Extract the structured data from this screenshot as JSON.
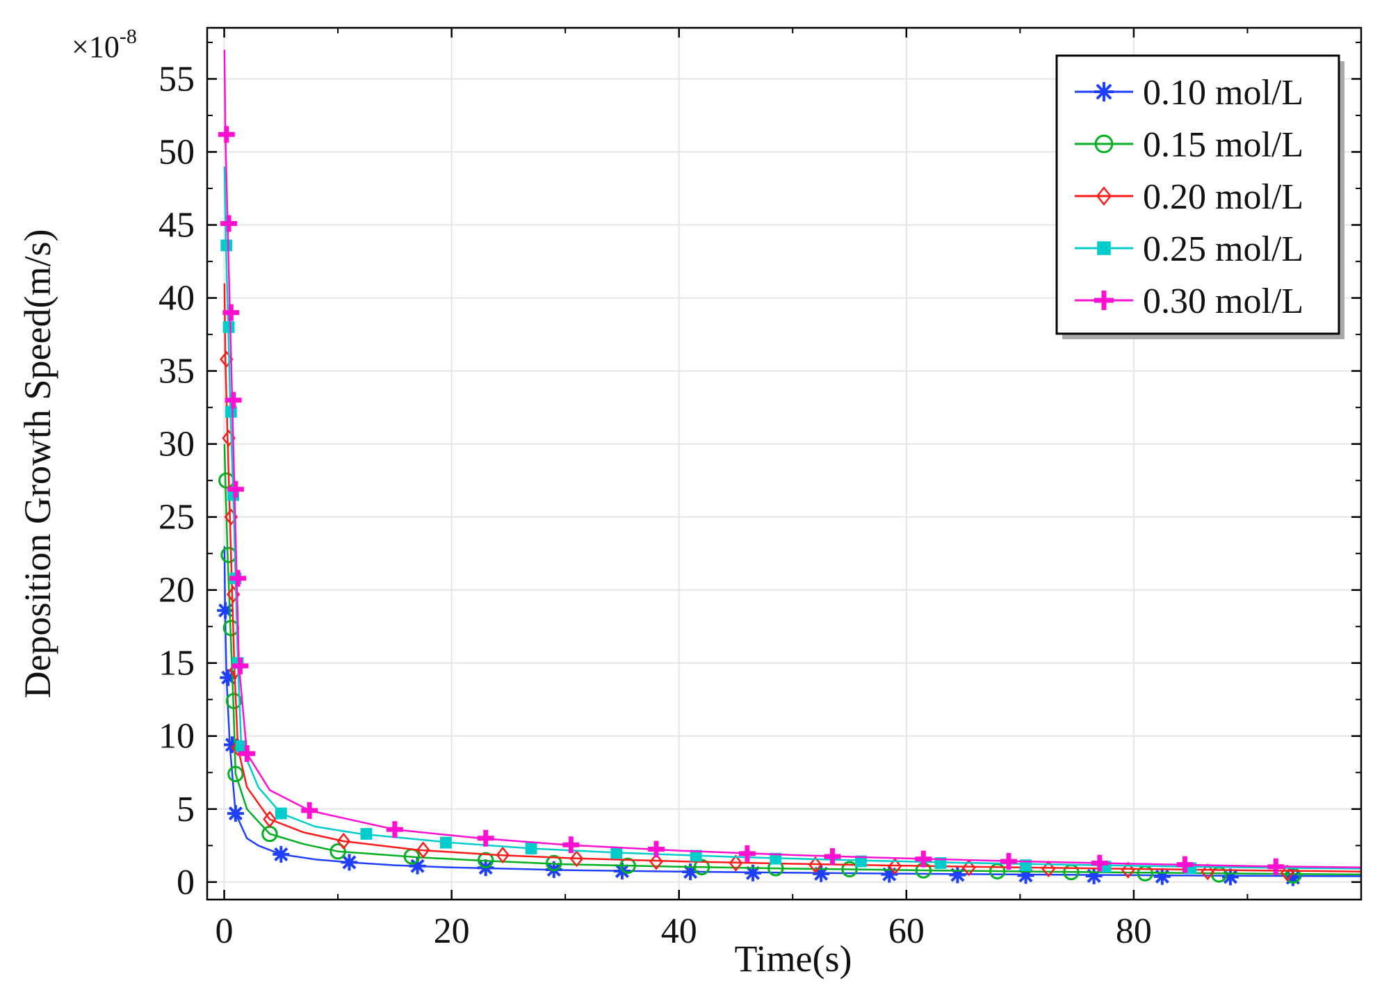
{
  "chart_data": {
    "type": "line",
    "title": "",
    "xlabel": "Time(s)",
    "ylabel": "Deposition Growth Speed(m/s)",
    "y_scale_label": "×10",
    "y_scale_exponent": "-8",
    "xlim": [
      -1.5,
      100
    ],
    "ylim": [
      -1.2,
      58.5
    ],
    "x_ticks": [
      0,
      20,
      40,
      60,
      80
    ],
    "x_tick_labels": [
      "0",
      "20",
      "40",
      "60",
      "80"
    ],
    "y_ticks": [
      0,
      5,
      10,
      15,
      20,
      25,
      30,
      35,
      40,
      45,
      50,
      55
    ],
    "y_tick_labels": [
      "0",
      "5",
      "10",
      "15",
      "20",
      "25",
      "30",
      "35",
      "40",
      "45",
      "50",
      "55"
    ],
    "grid": true,
    "legend_position": "top-right",
    "series": [
      {
        "name": "0.10 mol/L",
        "color": "#1f3fff",
        "marker": "asterisk",
        "curve": [
          [
            0.02,
            23.0
          ],
          [
            0.08,
            18.6
          ],
          [
            0.2,
            14.0
          ],
          [
            0.5,
            9.3
          ],
          [
            1.0,
            4.7
          ],
          [
            2.0,
            3.0
          ],
          [
            3,
            2.5
          ],
          [
            5,
            1.9
          ],
          [
            8,
            1.55
          ],
          [
            11,
            1.35
          ],
          [
            15,
            1.15
          ],
          [
            20,
            1.0
          ],
          [
            30,
            0.82
          ],
          [
            40,
            0.72
          ],
          [
            50,
            0.64
          ],
          [
            60,
            0.57
          ],
          [
            70,
            0.52
          ],
          [
            80,
            0.47
          ],
          [
            90,
            0.43
          ],
          [
            100,
            0.4
          ]
        ],
        "markers": [
          [
            0.1,
            18.6
          ],
          [
            0.35,
            14.0
          ],
          [
            0.7,
            9.4
          ],
          [
            1.0,
            4.7
          ],
          [
            5,
            1.9
          ],
          [
            11,
            1.35
          ],
          [
            17,
            1.1
          ],
          [
            23,
            0.98
          ],
          [
            29,
            0.85
          ],
          [
            35,
            0.75
          ],
          [
            41,
            0.7
          ],
          [
            46.5,
            0.62
          ],
          [
            52.5,
            0.57
          ],
          [
            58.5,
            0.53
          ],
          [
            64.5,
            0.49
          ],
          [
            70.5,
            0.45
          ],
          [
            76.5,
            0.42
          ],
          [
            82.5,
            0.38
          ],
          [
            88.5,
            0.35
          ],
          [
            94,
            0.3
          ]
        ]
      },
      {
        "name": "0.15 mol/L",
        "color": "#00b020",
        "marker": "circle",
        "curve": [
          [
            0.02,
            30.0
          ],
          [
            0.1,
            27.5
          ],
          [
            0.3,
            22.4
          ],
          [
            0.55,
            17.4
          ],
          [
            0.8,
            12.4
          ],
          [
            1.0,
            7.4
          ],
          [
            2,
            5.0
          ],
          [
            4,
            3.3
          ],
          [
            7,
            2.6
          ],
          [
            10,
            2.1
          ],
          [
            17,
            1.7
          ],
          [
            23,
            1.45
          ],
          [
            30,
            1.22
          ],
          [
            40,
            1.05
          ],
          [
            50,
            0.92
          ],
          [
            60,
            0.82
          ],
          [
            70,
            0.73
          ],
          [
            80,
            0.65
          ],
          [
            90,
            0.58
          ],
          [
            100,
            0.52
          ]
        ],
        "markers": [
          [
            0.2,
            27.5
          ],
          [
            0.4,
            22.4
          ],
          [
            0.6,
            17.4
          ],
          [
            0.85,
            12.4
          ],
          [
            1.0,
            7.4
          ],
          [
            4,
            3.3
          ],
          [
            10,
            2.1
          ],
          [
            16.5,
            1.75
          ],
          [
            23,
            1.5
          ],
          [
            29,
            1.3
          ],
          [
            35.5,
            1.12
          ],
          [
            42,
            1.02
          ],
          [
            48.5,
            0.95
          ],
          [
            55,
            0.88
          ],
          [
            61.5,
            0.8
          ],
          [
            68,
            0.74
          ],
          [
            74.5,
            0.68
          ],
          [
            81,
            0.6
          ],
          [
            87.5,
            0.52
          ],
          [
            94,
            0.45
          ]
        ]
      },
      {
        "name": "0.20 mol/L",
        "color": "#ff1a1a",
        "marker": "diamond",
        "curve": [
          [
            0.02,
            41.0
          ],
          [
            0.1,
            35.8
          ],
          [
            0.3,
            30.4
          ],
          [
            0.5,
            25.0
          ],
          [
            0.7,
            19.7
          ],
          [
            0.9,
            14.5
          ],
          [
            1.2,
            9.2
          ],
          [
            2,
            6.5
          ],
          [
            4,
            4.3
          ],
          [
            7,
            3.4
          ],
          [
            10.5,
            2.8
          ],
          [
            17,
            2.2
          ],
          [
            24,
            1.85
          ],
          [
            31,
            1.62
          ],
          [
            40,
            1.42
          ],
          [
            50,
            1.25
          ],
          [
            60,
            1.12
          ],
          [
            70,
            1.0
          ],
          [
            80,
            0.9
          ],
          [
            90,
            0.8
          ],
          [
            100,
            0.72
          ]
        ],
        "markers": [
          [
            0.2,
            35.8
          ],
          [
            0.4,
            30.4
          ],
          [
            0.6,
            25.0
          ],
          [
            0.8,
            19.7
          ],
          [
            1.0,
            14.5
          ],
          [
            1.2,
            9.2
          ],
          [
            4,
            4.3
          ],
          [
            10.5,
            2.8
          ],
          [
            17.5,
            2.2
          ],
          [
            24.5,
            1.85
          ],
          [
            31,
            1.6
          ],
          [
            38,
            1.4
          ],
          [
            45,
            1.3
          ],
          [
            52,
            1.18
          ],
          [
            59,
            1.08
          ],
          [
            65.5,
            0.98
          ],
          [
            72.5,
            0.9
          ],
          [
            79.5,
            0.82
          ],
          [
            86.5,
            0.7
          ],
          [
            93.5,
            0.62
          ]
        ]
      },
      {
        "name": "0.25 mol/L",
        "color": "#00cccc",
        "marker": "square",
        "curve": [
          [
            0.02,
            49.0
          ],
          [
            0.15,
            43.6
          ],
          [
            0.35,
            38.0
          ],
          [
            0.55,
            32.2
          ],
          [
            0.8,
            26.5
          ],
          [
            1.0,
            20.8
          ],
          [
            1.2,
            15.0
          ],
          [
            1.5,
            9.3
          ],
          [
            3,
            6.5
          ],
          [
            5,
            4.7
          ],
          [
            8,
            3.8
          ],
          [
            12,
            3.3
          ],
          [
            20,
            2.7
          ],
          [
            27,
            2.3
          ],
          [
            35,
            2.0
          ],
          [
            45,
            1.72
          ],
          [
            55,
            1.5
          ],
          [
            65,
            1.32
          ],
          [
            75,
            1.18
          ],
          [
            85,
            1.05
          ],
          [
            95,
            0.95
          ],
          [
            100,
            0.92
          ]
        ],
        "markers": [
          [
            0.2,
            43.6
          ],
          [
            0.4,
            38.0
          ],
          [
            0.6,
            32.2
          ],
          [
            0.8,
            26.5
          ],
          [
            1.0,
            20.8
          ],
          [
            1.2,
            15.0
          ],
          [
            1.5,
            9.3
          ],
          [
            5,
            4.7
          ],
          [
            12.5,
            3.3
          ],
          [
            19.5,
            2.7
          ],
          [
            27,
            2.3
          ],
          [
            34.5,
            2.0
          ],
          [
            41.5,
            1.8
          ],
          [
            48.5,
            1.6
          ],
          [
            56,
            1.42
          ],
          [
            63,
            1.3
          ],
          [
            70.5,
            1.15
          ],
          [
            77.5,
            1.05
          ],
          [
            85,
            0.95
          ]
        ]
      },
      {
        "name": "0.30 mol/L",
        "color": "#ff10d0",
        "marker": "plus",
        "curve": [
          [
            0.02,
            57.0
          ],
          [
            0.1,
            51.2
          ],
          [
            0.3,
            45.1
          ],
          [
            0.5,
            39.0
          ],
          [
            0.7,
            33.0
          ],
          [
            0.9,
            26.9
          ],
          [
            1.1,
            20.8
          ],
          [
            1.3,
            14.8
          ],
          [
            2,
            8.8
          ],
          [
            4,
            6.3
          ],
          [
            7.5,
            4.9
          ],
          [
            15,
            3.6
          ],
          [
            22.5,
            3.0
          ],
          [
            30,
            2.55
          ],
          [
            40,
            2.15
          ],
          [
            50,
            1.85
          ],
          [
            60,
            1.62
          ],
          [
            70,
            1.42
          ],
          [
            80,
            1.25
          ],
          [
            90,
            1.1
          ],
          [
            100,
            1.0
          ]
        ],
        "markers": [
          [
            0.2,
            51.2
          ],
          [
            0.4,
            45.1
          ],
          [
            0.6,
            39.0
          ],
          [
            0.8,
            33.0
          ],
          [
            1.0,
            26.9
          ],
          [
            1.2,
            20.8
          ],
          [
            1.4,
            14.8
          ],
          [
            2,
            8.8
          ],
          [
            7.5,
            4.9
          ],
          [
            15,
            3.6
          ],
          [
            23,
            3.0
          ],
          [
            30.5,
            2.55
          ],
          [
            38,
            2.25
          ],
          [
            46,
            1.95
          ],
          [
            53.5,
            1.75
          ],
          [
            61.5,
            1.58
          ],
          [
            69,
            1.42
          ],
          [
            77,
            1.3
          ],
          [
            84.5,
            1.2
          ],
          [
            92.5,
            1.05
          ]
        ]
      }
    ]
  }
}
